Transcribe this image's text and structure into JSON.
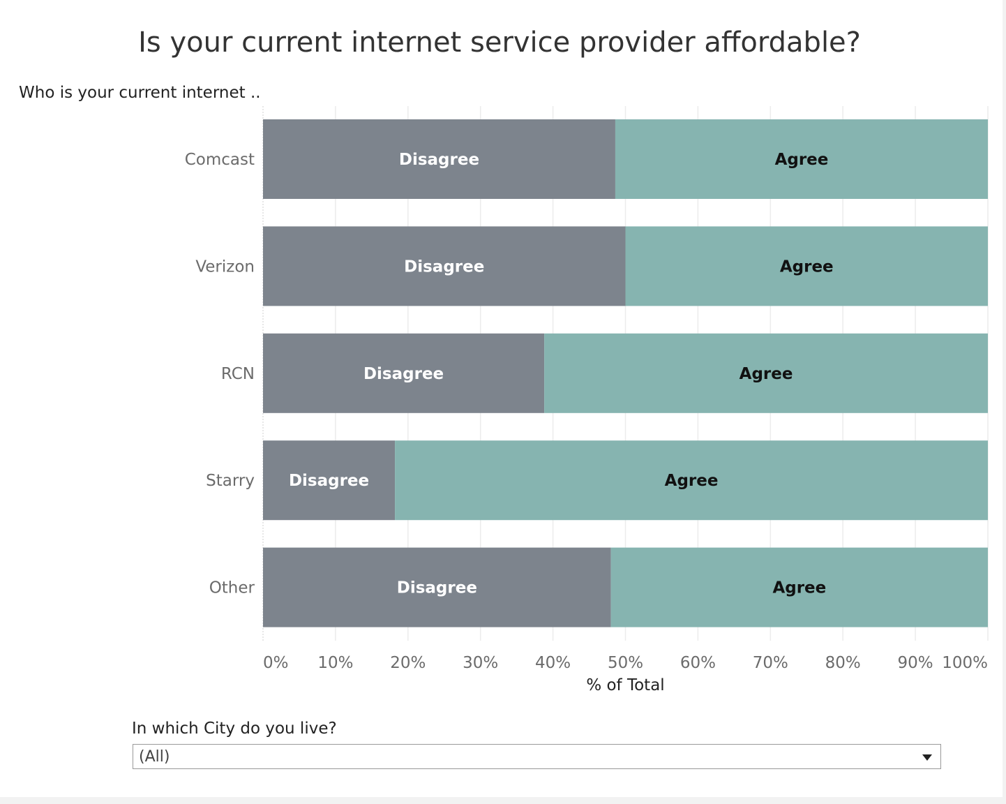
{
  "chart_data": {
    "type": "bar",
    "orientation": "horizontal",
    "stacked": "100%",
    "title": "Is your current internet service provider affordable?",
    "row_header": "Who is your current internet ..",
    "xlabel": "% of Total",
    "ylabel": "",
    "xlim": [
      0,
      100
    ],
    "x_ticks": [
      "0%",
      "10%",
      "20%",
      "30%",
      "40%",
      "50%",
      "60%",
      "70%",
      "80%",
      "90%",
      "100%"
    ],
    "grid": true,
    "categories": [
      "Comcast",
      "Verizon",
      "RCN",
      "Starry",
      "Other"
    ],
    "series": [
      {
        "name": "Disagree",
        "values": [
          48.6,
          50.0,
          38.8,
          18.2,
          48.0
        ],
        "color": "#7d848d",
        "label_color": "#ffffff"
      },
      {
        "name": "Agree",
        "values": [
          51.4,
          50.0,
          61.2,
          81.8,
          52.0
        ],
        "color": "#86b4b0",
        "label_color": "#111111"
      }
    ]
  },
  "filter": {
    "label": "In which City do you live?",
    "value": "(All)",
    "arrow_icon": "triangle-down-icon"
  }
}
